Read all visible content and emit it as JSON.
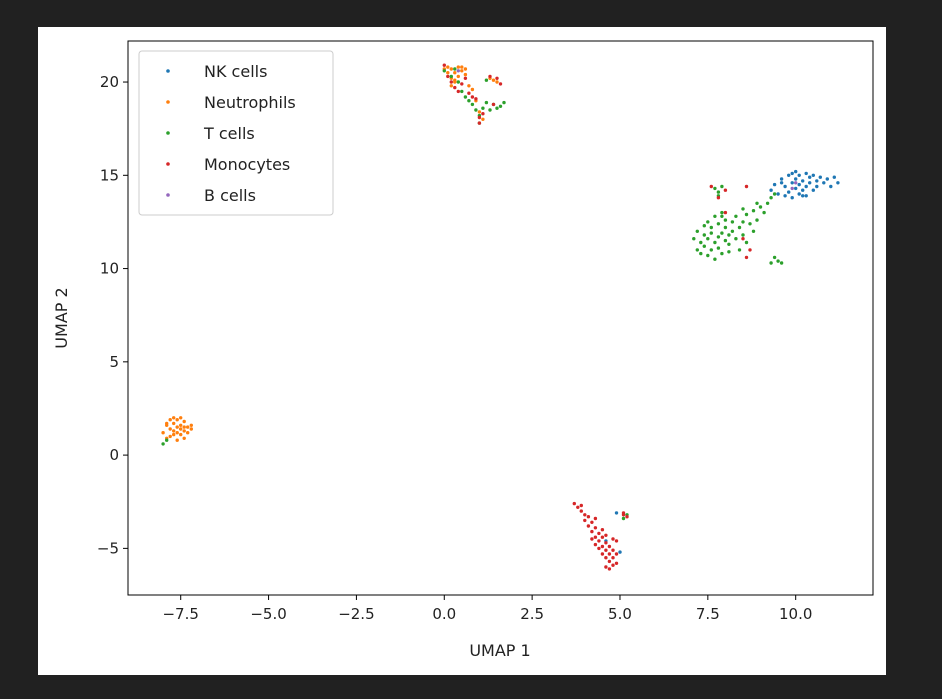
{
  "chart_data": {
    "type": "scatter",
    "title": "",
    "xlabel": "UMAP 1",
    "ylabel": "UMAP 2",
    "xlim": [
      -9.0,
      12.2
    ],
    "ylim": [
      -7.5,
      22.2
    ],
    "xticks": [
      -7.5,
      -5.0,
      -2.5,
      0.0,
      2.5,
      5.0,
      7.5,
      10.0
    ],
    "xtick_labels": [
      "−7.5",
      "−5.0",
      "−2.5",
      "0.0",
      "2.5",
      "5.0",
      "7.5",
      "10.0"
    ],
    "yticks": [
      -5,
      0,
      5,
      10,
      15,
      20
    ],
    "ytick_labels": [
      "−5",
      "0",
      "5",
      "10",
      "15",
      "20"
    ],
    "grid": false,
    "legend_position": "top-left",
    "series": [
      {
        "name": "NK cells",
        "color": "#1f77b4",
        "points": [
          [
            9.3,
            14.2
          ],
          [
            9.4,
            14.5
          ],
          [
            9.5,
            14.0
          ],
          [
            9.6,
            14.8
          ],
          [
            9.7,
            13.9
          ],
          [
            9.7,
            14.4
          ],
          [
            9.8,
            15.0
          ],
          [
            9.8,
            14.1
          ],
          [
            9.9,
            14.6
          ],
          [
            9.9,
            13.8
          ],
          [
            10.0,
            15.2
          ],
          [
            10.0,
            14.3
          ],
          [
            10.0,
            14.8
          ],
          [
            10.1,
            14.0
          ],
          [
            10.1,
            14.5
          ],
          [
            10.1,
            15.0
          ],
          [
            10.2,
            14.2
          ],
          [
            10.2,
            14.7
          ],
          [
            10.3,
            15.1
          ],
          [
            10.3,
            14.4
          ],
          [
            10.3,
            13.9
          ],
          [
            10.4,
            14.9
          ],
          [
            10.4,
            14.6
          ],
          [
            10.5,
            14.2
          ],
          [
            10.5,
            15.0
          ],
          [
            10.6,
            14.7
          ],
          [
            10.6,
            14.4
          ],
          [
            10.7,
            14.9
          ],
          [
            10.8,
            14.6
          ],
          [
            10.9,
            14.8
          ],
          [
            11.0,
            14.4
          ],
          [
            11.1,
            14.9
          ],
          [
            11.2,
            14.6
          ],
          [
            9.6,
            14.6
          ],
          [
            9.9,
            15.1
          ],
          [
            10.2,
            13.9
          ],
          [
            4.9,
            -3.1
          ],
          [
            5.0,
            -5.2
          ],
          [
            4.6,
            -4.6
          ]
        ]
      },
      {
        "name": "Neutrophils",
        "color": "#ff7f0e",
        "points": [
          [
            -8.0,
            1.2
          ],
          [
            -7.9,
            1.6
          ],
          [
            -7.9,
            0.9
          ],
          [
            -7.8,
            1.9
          ],
          [
            -7.8,
            1.4
          ],
          [
            -7.8,
            1.0
          ],
          [
            -7.7,
            1.7
          ],
          [
            -7.7,
            2.0
          ],
          [
            -7.7,
            1.3
          ],
          [
            -7.6,
            0.8
          ],
          [
            -7.6,
            1.5
          ],
          [
            -7.6,
            1.9
          ],
          [
            -7.5,
            1.1
          ],
          [
            -7.5,
            1.6
          ],
          [
            -7.5,
            2.0
          ],
          [
            -7.4,
            1.3
          ],
          [
            -7.4,
            1.8
          ],
          [
            -7.4,
            0.9
          ],
          [
            -7.3,
            1.5
          ],
          [
            -7.3,
            1.2
          ],
          [
            -7.2,
            1.6
          ],
          [
            -7.2,
            1.4
          ],
          [
            -7.9,
            1.7
          ],
          [
            -7.6,
            1.2
          ],
          [
            -7.5,
            1.4
          ],
          [
            -7.7,
            1.1
          ],
          [
            -7.4,
            1.5
          ],
          [
            0.0,
            20.7
          ],
          [
            0.1,
            20.5
          ],
          [
            0.1,
            20.8
          ],
          [
            0.2,
            20.2
          ],
          [
            0.2,
            20.7
          ],
          [
            0.3,
            20.5
          ],
          [
            0.3,
            20.0
          ],
          [
            0.4,
            20.8
          ],
          [
            0.4,
            20.3
          ],
          [
            0.5,
            20.6
          ],
          [
            0.5,
            20.8
          ],
          [
            0.6,
            20.4
          ],
          [
            0.6,
            20.7
          ],
          [
            0.2,
            19.8
          ],
          [
            0.3,
            20.1
          ],
          [
            0.7,
            19.8
          ],
          [
            0.8,
            19.6
          ],
          [
            0.9,
            19.0
          ],
          [
            1.0,
            18.4
          ],
          [
            1.1,
            18.0
          ],
          [
            1.3,
            20.2
          ],
          [
            1.4,
            20.1
          ],
          [
            1.5,
            20.0
          ]
        ]
      },
      {
        "name": "T cells",
        "color": "#2ca02c",
        "points": [
          [
            0.0,
            20.6
          ],
          [
            0.2,
            20.3
          ],
          [
            0.3,
            20.7
          ],
          [
            0.4,
            20.0
          ],
          [
            0.5,
            19.5
          ],
          [
            0.6,
            19.2
          ],
          [
            0.7,
            19.0
          ],
          [
            0.8,
            18.8
          ],
          [
            0.9,
            18.5
          ],
          [
            1.0,
            18.2
          ],
          [
            1.0,
            17.8
          ],
          [
            1.1,
            18.6
          ],
          [
            1.2,
            18.9
          ],
          [
            1.3,
            18.5
          ],
          [
            1.4,
            18.8
          ],
          [
            1.5,
            18.6
          ],
          [
            1.6,
            18.7
          ],
          [
            1.7,
            18.9
          ],
          [
            1.2,
            20.1
          ],
          [
            -8.0,
            0.6
          ],
          [
            -7.9,
            0.8
          ],
          [
            7.1,
            11.6
          ],
          [
            7.2,
            11.0
          ],
          [
            7.2,
            12.0
          ],
          [
            7.3,
            11.4
          ],
          [
            7.3,
            10.8
          ],
          [
            7.4,
            11.8
          ],
          [
            7.4,
            12.3
          ],
          [
            7.4,
            11.2
          ],
          [
            7.5,
            11.6
          ],
          [
            7.5,
            10.7
          ],
          [
            7.5,
            12.5
          ],
          [
            7.6,
            11.0
          ],
          [
            7.6,
            11.9
          ],
          [
            7.6,
            12.2
          ],
          [
            7.7,
            11.4
          ],
          [
            7.7,
            10.5
          ],
          [
            7.7,
            12.8
          ],
          [
            7.8,
            11.7
          ],
          [
            7.8,
            11.1
          ],
          [
            7.8,
            12.4
          ],
          [
            7.9,
            11.9
          ],
          [
            7.9,
            10.8
          ],
          [
            7.9,
            13.0
          ],
          [
            8.0,
            11.5
          ],
          [
            8.0,
            12.2
          ],
          [
            8.0,
            12.6
          ],
          [
            8.1,
            11.3
          ],
          [
            8.1,
            11.8
          ],
          [
            8.1,
            10.9
          ],
          [
            8.2,
            12.5
          ],
          [
            8.2,
            12.0
          ],
          [
            8.3,
            11.6
          ],
          [
            8.3,
            12.8
          ],
          [
            8.4,
            12.2
          ],
          [
            8.4,
            11.0
          ],
          [
            8.5,
            12.5
          ],
          [
            8.5,
            11.8
          ],
          [
            8.6,
            12.9
          ],
          [
            8.6,
            11.4
          ],
          [
            8.7,
            12.4
          ],
          [
            8.8,
            12.0
          ],
          [
            8.8,
            13.1
          ],
          [
            8.9,
            12.6
          ],
          [
            9.0,
            13.3
          ],
          [
            9.1,
            13.0
          ],
          [
            9.2,
            13.5
          ],
          [
            9.3,
            13.8
          ],
          [
            9.4,
            14.0
          ],
          [
            9.5,
            10.4
          ],
          [
            9.4,
            10.6
          ],
          [
            9.3,
            10.3
          ],
          [
            9.6,
            10.3
          ],
          [
            7.7,
            14.3
          ],
          [
            7.8,
            14.1
          ],
          [
            7.9,
            14.4
          ],
          [
            7.8,
            13.9
          ],
          [
            5.1,
            -3.4
          ],
          [
            5.2,
            -3.2
          ],
          [
            8.9,
            13.5
          ],
          [
            8.5,
            13.2
          ],
          [
            7.9,
            12.8
          ]
        ]
      },
      {
        "name": "Monocytes",
        "color": "#d62728",
        "points": [
          [
            3.7,
            -2.6
          ],
          [
            3.8,
            -2.8
          ],
          [
            3.9,
            -3.0
          ],
          [
            3.9,
            -2.7
          ],
          [
            4.0,
            -3.2
          ],
          [
            4.0,
            -3.5
          ],
          [
            4.1,
            -3.3
          ],
          [
            4.1,
            -3.8
          ],
          [
            4.2,
            -3.6
          ],
          [
            4.2,
            -4.1
          ],
          [
            4.2,
            -4.5
          ],
          [
            4.3,
            -3.9
          ],
          [
            4.3,
            -4.4
          ],
          [
            4.3,
            -4.8
          ],
          [
            4.4,
            -4.2
          ],
          [
            4.4,
            -4.6
          ],
          [
            4.4,
            -5.0
          ],
          [
            4.5,
            -4.4
          ],
          [
            4.5,
            -4.9
          ],
          [
            4.5,
            -5.3
          ],
          [
            4.6,
            -4.7
          ],
          [
            4.6,
            -5.1
          ],
          [
            4.6,
            -5.5
          ],
          [
            4.7,
            -4.9
          ],
          [
            4.7,
            -5.3
          ],
          [
            4.7,
            -5.7
          ],
          [
            4.8,
            -5.1
          ],
          [
            4.8,
            -5.5
          ],
          [
            4.8,
            -5.9
          ],
          [
            4.9,
            -4.6
          ],
          [
            4.9,
            -5.3
          ],
          [
            4.9,
            -5.8
          ],
          [
            4.5,
            -4.0
          ],
          [
            4.6,
            -4.3
          ],
          [
            4.3,
            -3.4
          ],
          [
            4.8,
            -4.5
          ],
          [
            4.6,
            -6.0
          ],
          [
            4.7,
            -6.1
          ],
          [
            5.1,
            -3.2
          ],
          [
            5.2,
            -3.3
          ],
          [
            5.1,
            -3.1
          ],
          [
            0.0,
            20.9
          ],
          [
            0.1,
            20.3
          ],
          [
            0.2,
            20.0
          ],
          [
            0.3,
            19.7
          ],
          [
            0.4,
            19.5
          ],
          [
            0.5,
            19.9
          ],
          [
            0.6,
            20.2
          ],
          [
            0.7,
            19.4
          ],
          [
            0.8,
            19.2
          ],
          [
            0.9,
            19.1
          ],
          [
            1.0,
            18.1
          ],
          [
            1.0,
            17.8
          ],
          [
            1.1,
            18.3
          ],
          [
            1.3,
            20.3
          ],
          [
            1.4,
            18.8
          ],
          [
            1.5,
            20.2
          ],
          [
            1.6,
            19.9
          ],
          [
            7.6,
            14.4
          ],
          [
            7.8,
            13.8
          ],
          [
            8.0,
            14.2
          ],
          [
            8.0,
            13.0
          ],
          [
            8.6,
            14.4
          ],
          [
            8.5,
            11.6
          ],
          [
            8.7,
            11.0
          ],
          [
            8.6,
            10.6
          ]
        ]
      },
      {
        "name": "B cells",
        "color": "#9467bd",
        "points": [
          [
            9.9,
            14.3
          ],
          [
            10.0,
            14.6
          ],
          [
            0.4,
            20.6
          ]
        ]
      }
    ]
  }
}
